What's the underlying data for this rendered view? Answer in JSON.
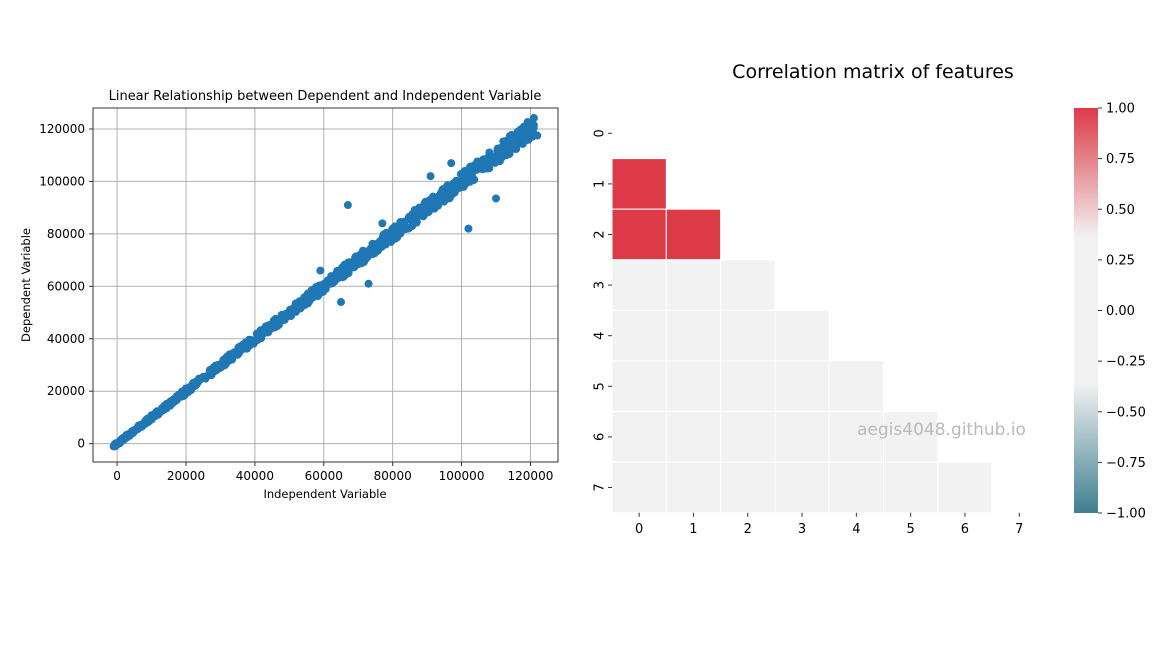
{
  "chart_data": [
    {
      "type": "scatter",
      "title": "Linear Relationship between Dependent and Independent Variable",
      "xlabel": "Independent Variable",
      "ylabel": "Dependent Variable",
      "xlim": [
        -7000,
        128000
      ],
      "ylim": [
        -7000,
        128000
      ],
      "xticks": [
        0,
        20000,
        40000,
        60000,
        80000,
        100000,
        120000
      ],
      "yticks": [
        0,
        20000,
        40000,
        60000,
        80000,
        100000,
        120000
      ],
      "xtick_labels": [
        "0",
        "20000",
        "40000",
        "60000",
        "80000",
        "100000",
        "120000"
      ],
      "ytick_labels": [
        "0",
        "20000",
        "40000",
        "60000",
        "80000",
        "100000",
        "120000"
      ],
      "grid": true,
      "color": "#1f77b4",
      "series": [
        {
          "points": [
            [
              -500,
              -1000
            ],
            [
              1500,
              1200
            ],
            [
              3000,
              2500
            ],
            [
              5000,
              5200
            ],
            [
              7000,
              6500
            ],
            [
              9000,
              9500
            ],
            [
              11000,
              10500
            ],
            [
              13000,
              13500
            ],
            [
              15000,
              14500
            ],
            [
              17000,
              17500
            ],
            [
              19000,
              18500
            ],
            [
              21000,
              21500
            ],
            [
              23000,
              22500
            ],
            [
              25000,
              25500
            ],
            [
              27000,
              27500
            ],
            [
              29000,
              28500
            ],
            [
              31000,
              31500
            ],
            [
              33000,
              32500
            ],
            [
              35000,
              35500
            ],
            [
              37000,
              36500
            ],
            [
              39000,
              39500
            ],
            [
              41000,
              41500
            ],
            [
              43000,
              42500
            ],
            [
              45000,
              45500
            ],
            [
              47000,
              46500
            ],
            [
              49000,
              49500
            ],
            [
              51000,
              51500
            ],
            [
              53000,
              52500
            ],
            [
              55000,
              55500
            ],
            [
              57000,
              56500
            ],
            [
              59000,
              59500
            ],
            [
              61000,
              61500
            ],
            [
              63000,
              62500
            ],
            [
              65000,
              65500
            ],
            [
              67000,
              66500
            ],
            [
              69000,
              69500
            ],
            [
              71000,
              71500
            ],
            [
              73000,
              72500
            ],
            [
              75000,
              75500
            ],
            [
              77000,
              76500
            ],
            [
              79000,
              79500
            ],
            [
              81000,
              81500
            ],
            [
              83000,
              82500
            ],
            [
              85000,
              85500
            ],
            [
              87000,
              86500
            ],
            [
              89000,
              89500
            ],
            [
              91000,
              91500
            ],
            [
              93000,
              92500
            ],
            [
              95000,
              95500
            ],
            [
              97000,
              96500
            ],
            [
              99000,
              99500
            ],
            [
              101000,
              101500
            ],
            [
              103000,
              102500
            ],
            [
              105000,
              105500
            ],
            [
              107000,
              106500
            ],
            [
              109000,
              109500
            ],
            [
              111000,
              110500
            ],
            [
              113000,
              113500
            ],
            [
              115000,
              114500
            ],
            [
              117000,
              117500
            ],
            [
              119000,
              118500
            ],
            [
              121000,
              121500
            ],
            [
              122000,
              117500
            ],
            [
              67000,
              91000
            ],
            [
              97000,
              107000
            ],
            [
              110000,
              93500
            ],
            [
              102000,
              82000
            ],
            [
              73000,
              61000
            ],
            [
              65000,
              54000
            ],
            [
              59000,
              66000
            ],
            [
              45000,
              45500
            ],
            [
              91000,
              102000
            ],
            [
              77000,
              84000
            ]
          ]
        }
      ]
    },
    {
      "type": "heatmap",
      "title": "Correlation matrix of features",
      "x_tick_labels": [
        "0",
        "1",
        "2",
        "3",
        "4",
        "5",
        "6",
        "7"
      ],
      "y_tick_labels": [
        "0",
        "1",
        "2",
        "3",
        "4",
        "5",
        "6",
        "7"
      ],
      "mask": "upper-triangle including diagonal",
      "values": [
        [
          null,
          null,
          null,
          null,
          null,
          null,
          null,
          null
        ],
        [
          1.0,
          null,
          null,
          null,
          null,
          null,
          null,
          null
        ],
        [
          1.0,
          1.0,
          null,
          null,
          null,
          null,
          null,
          null
        ],
        [
          0.05,
          0.05,
          0.05,
          null,
          null,
          null,
          null,
          null
        ],
        [
          0.05,
          0.05,
          0.05,
          0.05,
          null,
          null,
          null,
          null
        ],
        [
          0.05,
          0.05,
          0.05,
          0.05,
          0.05,
          null,
          null,
          null
        ],
        [
          0.05,
          0.05,
          0.05,
          0.05,
          0.05,
          0.05,
          null,
          null
        ],
        [
          0.05,
          0.05,
          0.05,
          0.05,
          0.05,
          0.05,
          0.05,
          null
        ]
      ],
      "colorbar": {
        "vmin": -1.0,
        "vmax": 1.0,
        "ticks": [
          1.0,
          0.75,
          0.5,
          0.25,
          0.0,
          -0.25,
          -0.5,
          -0.75,
          -1.0
        ],
        "tick_labels": [
          "1.00",
          "0.75",
          "0.50",
          "0.25",
          "0.00",
          "−0.25",
          "−0.50",
          "−0.75",
          "−1.00"
        ],
        "colors": {
          "low": "#3f7f8f",
          "mid": "#f2f2f2",
          "high": "#dc3a47"
        }
      }
    }
  ],
  "watermark": "aegis4048.github.io"
}
